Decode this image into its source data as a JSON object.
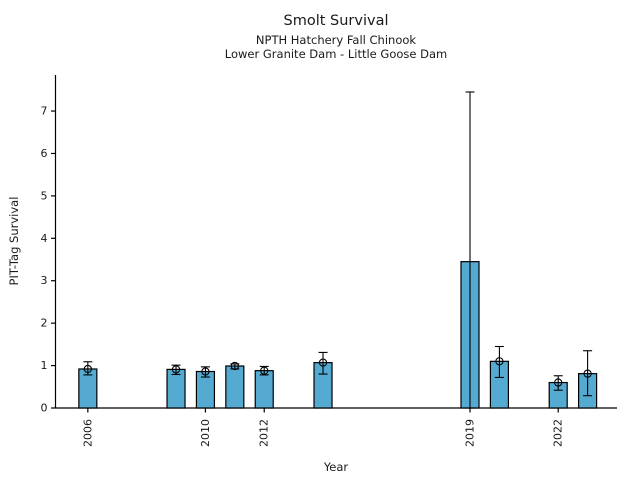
{
  "chart_data": {
    "type": "bar",
    "title": "Smolt Survival",
    "subtitles": [
      "NPTH Hatchery Fall Chinook",
      "Lower Granite Dam - Little Goose Dam"
    ],
    "xlabel": "Year",
    "ylabel": "PIT-Tag Survival",
    "x_domain": [
      2004.9,
      2024.0
    ],
    "ylim": [
      0,
      7.85
    ],
    "yticks": [
      0,
      1,
      2,
      3,
      4,
      5,
      6,
      7
    ],
    "xticks": [
      2006,
      2010,
      2012,
      2019,
      2022
    ],
    "grid": false,
    "legend": "none",
    "bar_color": "#55aad2",
    "bar_edge_color": "#000000",
    "errorbar_color": "#000000",
    "marker_style": "open-circle",
    "points": [
      {
        "year": 2006,
        "value": 0.92,
        "ci_low": 0.78,
        "ci_high": 1.09,
        "marker": true
      },
      {
        "year": 2009,
        "value": 0.91,
        "ci_low": 0.79,
        "ci_high": 1.01,
        "marker": true
      },
      {
        "year": 2010,
        "value": 0.86,
        "ci_low": 0.73,
        "ci_high": 0.97,
        "marker": true
      },
      {
        "year": 2011,
        "value": 0.99,
        "ci_low": 0.92,
        "ci_high": 1.04,
        "marker": true
      },
      {
        "year": 2012,
        "value": 0.88,
        "ci_low": 0.78,
        "ci_high": 0.98,
        "marker": true
      },
      {
        "year": 2014,
        "value": 1.07,
        "ci_low": 0.8,
        "ci_high": 1.31,
        "marker": true
      },
      {
        "year": 2019,
        "value": 3.45,
        "ci_low": 0.0,
        "ci_high": 7.45,
        "marker": false
      },
      {
        "year": 2020,
        "value": 1.1,
        "ci_low": 0.72,
        "ci_high": 1.45,
        "marker": true
      },
      {
        "year": 2022,
        "value": 0.6,
        "ci_low": 0.42,
        "ci_high": 0.76,
        "marker": true
      },
      {
        "year": 2023,
        "value": 0.81,
        "ci_low": 0.29,
        "ci_high": 1.35,
        "marker": true
      }
    ]
  }
}
